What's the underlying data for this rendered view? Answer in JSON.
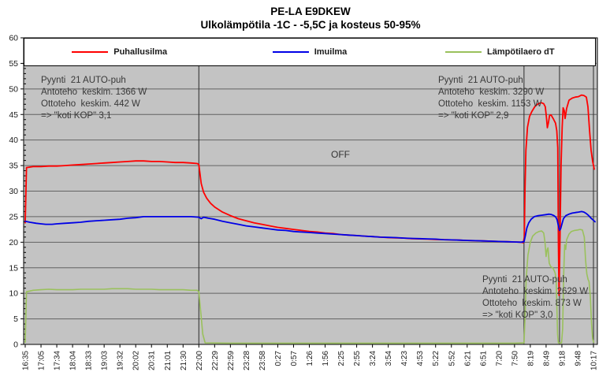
{
  "title": "PE-LA E9DKEW",
  "subtitle": "Ulkolämpötila -1C - -5,5C ja kosteus 50-95%",
  "annotations": {
    "period1": {
      "lines": [
        "Pyynti  21 AUTO-puh",
        "Antoteho  keskim. 1366 W",
        "Ottoteho  keskim. 442 W",
        "=> \"koti KOP\" 3,1"
      ]
    },
    "period2": {
      "lines": [
        "Pyynti  21 AUTO-puh",
        "Antoteho  keskim. 3290 W",
        "Ottoteho  keskim. 1153 W",
        "=> \"koti KOP\" 2,9"
      ]
    },
    "period3": {
      "lines": [
        "Pyynti  21 AUTO-puh",
        "Antoteho  keskim. 2629 W",
        "Ottoteho  keskim. 873 W",
        "=> \"koti KOP\" 3,0"
      ]
    },
    "off_label": "OFF"
  },
  "chart_data": {
    "type": "line",
    "title": "PE-LA E9DKEW",
    "subtitle": "Ulkolämpötila -1C - -5,5C ja kosteus 50-95%",
    "xlabel": "",
    "ylabel": "",
    "ylim": [
      0,
      60
    ],
    "ytick_step": 5,
    "yminor_step": 1,
    "xtick_rotation": -90,
    "grid": "horizontal major gridlines on gray plot background",
    "legend_position": "top",
    "plot_bg": "#c3c3c3",
    "gridline_color": "#636363",
    "divider_color": "#2b2b2b",
    "axis_color": "#000000",
    "divider_indices": [
      11,
      31.6,
      33.85,
      36.0
    ],
    "categories": [
      "16:35",
      "17:05",
      "17:34",
      "18:04",
      "18:33",
      "19:03",
      "19:32",
      "20:02",
      "20:31",
      "21:01",
      "21:30",
      "22:00",
      "22:29",
      "22:59",
      "23:28",
      "23:58",
      "0:27",
      "0:57",
      "1:26",
      "1:56",
      "2:25",
      "2:55",
      "3:24",
      "3:54",
      "4:23",
      "4:53",
      "5:22",
      "5:52",
      "6:21",
      "6:51",
      "7:20",
      "7:50",
      "8:19",
      "8:49",
      "9:18",
      "9:48",
      "10:17"
    ],
    "series": [
      {
        "name": "Puhallusilma",
        "color": "#ff0000",
        "width": 1.8,
        "points": [
          [
            0,
            23.8
          ],
          [
            0.08,
            34.6
          ],
          [
            0.5,
            34.8
          ],
          [
            1,
            34.8
          ],
          [
            1.5,
            34.9
          ],
          [
            2,
            34.9
          ],
          [
            2.5,
            35.0
          ],
          [
            3,
            35.1
          ],
          [
            3.5,
            35.2
          ],
          [
            4,
            35.3
          ],
          [
            4.5,
            35.4
          ],
          [
            5,
            35.5
          ],
          [
            5.5,
            35.6
          ],
          [
            6,
            35.7
          ],
          [
            6.5,
            35.8
          ],
          [
            7,
            35.9
          ],
          [
            7.5,
            35.9
          ],
          [
            8,
            35.8
          ],
          [
            8.5,
            35.8
          ],
          [
            9,
            35.7
          ],
          [
            9.5,
            35.6
          ],
          [
            10,
            35.6
          ],
          [
            10.5,
            35.5
          ],
          [
            10.9,
            35.4
          ],
          [
            11,
            35.2
          ],
          [
            11.15,
            31.5
          ],
          [
            11.3,
            29.8
          ],
          [
            11.5,
            28.6
          ],
          [
            11.75,
            27.6
          ],
          [
            12,
            26.9
          ],
          [
            12.5,
            25.9
          ],
          [
            13,
            25.2
          ],
          [
            13.5,
            24.6
          ],
          [
            14,
            24.2
          ],
          [
            14.5,
            23.8
          ],
          [
            15,
            23.5
          ],
          [
            15.5,
            23.2
          ],
          [
            16,
            22.9
          ],
          [
            16.5,
            22.7
          ],
          [
            17,
            22.5
          ],
          [
            17.5,
            22.3
          ],
          [
            18,
            22.1
          ],
          [
            18.5,
            22.0
          ],
          [
            19,
            21.8
          ],
          [
            19.5,
            21.7
          ],
          [
            20,
            21.5
          ],
          [
            20.5,
            21.4
          ],
          [
            21,
            21.3
          ],
          [
            21.5,
            21.2
          ],
          [
            22,
            21.1
          ],
          [
            22.5,
            21.0
          ],
          [
            23,
            20.9
          ],
          [
            23.5,
            20.85
          ],
          [
            24,
            20.8
          ],
          [
            24.5,
            20.7
          ],
          [
            25,
            20.65
          ],
          [
            25.5,
            20.6
          ],
          [
            26,
            20.55
          ],
          [
            26.5,
            20.5
          ],
          [
            27,
            20.45
          ],
          [
            27.5,
            20.4
          ],
          [
            28,
            20.35
          ],
          [
            28.5,
            20.3
          ],
          [
            29,
            20.25
          ],
          [
            29.5,
            20.2
          ],
          [
            30,
            20.15
          ],
          [
            30.5,
            20.1
          ],
          [
            31,
            20.05
          ],
          [
            31.4,
            20.0
          ],
          [
            31.55,
            19.9
          ],
          [
            31.62,
            21
          ],
          [
            31.66,
            30
          ],
          [
            31.72,
            38
          ],
          [
            31.82,
            42.5
          ],
          [
            31.95,
            44.6
          ],
          [
            32.1,
            45.6
          ],
          [
            32.3,
            46.6
          ],
          [
            32.5,
            47.1
          ],
          [
            32.7,
            47.3
          ],
          [
            32.85,
            47.1
          ],
          [
            32.95,
            46.5
          ],
          [
            33.02,
            44.5
          ],
          [
            33.08,
            42.4
          ],
          [
            33.15,
            43.4
          ],
          [
            33.22,
            44.8
          ],
          [
            33.32,
            44.9
          ],
          [
            33.45,
            44.2
          ],
          [
            33.6,
            43.3
          ],
          [
            33.68,
            41.8
          ],
          [
            33.74,
            38.5
          ],
          [
            33.78,
            20
          ],
          [
            33.82,
            9.6
          ],
          [
            33.88,
            20
          ],
          [
            33.95,
            35
          ],
          [
            34.02,
            42.5
          ],
          [
            34.08,
            46.3
          ],
          [
            34.15,
            45.8
          ],
          [
            34.2,
            44.2
          ],
          [
            34.3,
            46.2
          ],
          [
            34.45,
            47.8
          ],
          [
            34.65,
            48.2
          ],
          [
            34.85,
            48.4
          ],
          [
            35.05,
            48.5
          ],
          [
            35.25,
            48.8
          ],
          [
            35.4,
            48.7
          ],
          [
            35.55,
            48.4
          ],
          [
            35.65,
            46.5
          ],
          [
            35.75,
            42
          ],
          [
            35.85,
            38
          ],
          [
            35.95,
            35.8
          ],
          [
            36.05,
            34.3
          ]
        ]
      },
      {
        "name": "Imuilma",
        "color": "#0000e6",
        "width": 1.8,
        "points": [
          [
            0,
            24.1
          ],
          [
            0.3,
            23.9
          ],
          [
            0.7,
            23.7
          ],
          [
            1,
            23.6
          ],
          [
            1.3,
            23.5
          ],
          [
            1.7,
            23.5
          ],
          [
            2,
            23.6
          ],
          [
            2.5,
            23.7
          ],
          [
            3,
            23.8
          ],
          [
            3.5,
            23.9
          ],
          [
            4,
            24.1
          ],
          [
            4.5,
            24.2
          ],
          [
            5,
            24.3
          ],
          [
            5.5,
            24.4
          ],
          [
            6,
            24.5
          ],
          [
            6.5,
            24.7
          ],
          [
            7,
            24.8
          ],
          [
            7.5,
            25.0
          ],
          [
            8,
            25.0
          ],
          [
            8.5,
            25.0
          ],
          [
            9,
            25.0
          ],
          [
            9.5,
            25.0
          ],
          [
            10,
            25.0
          ],
          [
            10.5,
            25.0
          ],
          [
            11,
            24.9
          ],
          [
            11.15,
            24.6
          ],
          [
            11.3,
            24.9
          ],
          [
            11.6,
            24.7
          ],
          [
            12,
            24.5
          ],
          [
            12.5,
            24.1
          ],
          [
            13,
            23.8
          ],
          [
            13.5,
            23.5
          ],
          [
            14,
            23.2
          ],
          [
            14.5,
            23.0
          ],
          [
            15,
            22.8
          ],
          [
            15.5,
            22.6
          ],
          [
            16,
            22.4
          ],
          [
            16.5,
            22.3
          ],
          [
            17,
            22.1
          ],
          [
            17.5,
            22.0
          ],
          [
            18,
            21.9
          ],
          [
            18.5,
            21.8
          ],
          [
            19,
            21.7
          ],
          [
            19.5,
            21.6
          ],
          [
            20,
            21.5
          ],
          [
            20.5,
            21.4
          ],
          [
            21,
            21.3
          ],
          [
            21.5,
            21.2
          ],
          [
            22,
            21.1
          ],
          [
            22.5,
            21.0
          ],
          [
            23,
            20.95
          ],
          [
            23.5,
            20.9
          ],
          [
            24,
            20.8
          ],
          [
            24.5,
            20.75
          ],
          [
            25,
            20.7
          ],
          [
            25.5,
            20.65
          ],
          [
            26,
            20.6
          ],
          [
            26.5,
            20.5
          ],
          [
            27,
            20.45
          ],
          [
            27.5,
            20.4
          ],
          [
            28,
            20.35
          ],
          [
            28.5,
            20.3
          ],
          [
            29,
            20.25
          ],
          [
            29.5,
            20.2
          ],
          [
            30,
            20.15
          ],
          [
            30.5,
            20.1
          ],
          [
            31,
            20.05
          ],
          [
            31.4,
            20.0
          ],
          [
            31.6,
            20.1
          ],
          [
            31.68,
            21.2
          ],
          [
            31.78,
            22.8
          ],
          [
            31.9,
            23.8
          ],
          [
            32.05,
            24.5
          ],
          [
            32.25,
            25.0
          ],
          [
            32.5,
            25.2
          ],
          [
            32.75,
            25.3
          ],
          [
            33,
            25.4
          ],
          [
            33.2,
            25.5
          ],
          [
            33.35,
            25.4
          ],
          [
            33.5,
            25.2
          ],
          [
            33.62,
            24.9
          ],
          [
            33.7,
            24.4
          ],
          [
            33.78,
            23.2
          ],
          [
            33.85,
            22.3
          ],
          [
            33.92,
            22.6
          ],
          [
            34,
            23.5
          ],
          [
            34.1,
            24.6
          ],
          [
            34.25,
            25.2
          ],
          [
            34.45,
            25.5
          ],
          [
            34.65,
            25.7
          ],
          [
            34.85,
            25.8
          ],
          [
            35.05,
            25.9
          ],
          [
            35.25,
            26.0
          ],
          [
            35.4,
            25.9
          ],
          [
            35.55,
            25.6
          ],
          [
            35.7,
            25.2
          ],
          [
            35.85,
            24.7
          ],
          [
            36.0,
            24.3
          ],
          [
            36.1,
            24.0
          ]
        ]
      },
      {
        "name": "Lämpötilaero dT",
        "color": "#9ac15c",
        "width": 1.6,
        "points": [
          [
            0,
            0.4
          ],
          [
            0.08,
            10.3
          ],
          [
            0.5,
            10.6
          ],
          [
            1,
            10.7
          ],
          [
            1.5,
            10.8
          ],
          [
            2,
            10.7
          ],
          [
            2.5,
            10.7
          ],
          [
            3,
            10.7
          ],
          [
            3.5,
            10.8
          ],
          [
            4,
            10.8
          ],
          [
            4.5,
            10.8
          ],
          [
            5,
            10.8
          ],
          [
            5.5,
            10.9
          ],
          [
            6,
            10.9
          ],
          [
            6.5,
            10.9
          ],
          [
            7,
            10.8
          ],
          [
            7.5,
            10.8
          ],
          [
            8,
            10.8
          ],
          [
            8.5,
            10.7
          ],
          [
            9,
            10.7
          ],
          [
            9.5,
            10.7
          ],
          [
            10,
            10.7
          ],
          [
            10.5,
            10.6
          ],
          [
            10.9,
            10.6
          ],
          [
            11,
            10.3
          ],
          [
            11.1,
            7
          ],
          [
            11.25,
            2
          ],
          [
            11.4,
            0.3
          ],
          [
            13,
            0.25
          ],
          [
            15,
            0.25
          ],
          [
            17,
            0.25
          ],
          [
            19,
            0.25
          ],
          [
            21,
            0.25
          ],
          [
            23,
            0.25
          ],
          [
            25,
            0.25
          ],
          [
            27,
            0.25
          ],
          [
            29,
            0.25
          ],
          [
            31,
            0.25
          ],
          [
            31.6,
            0.3
          ],
          [
            31.66,
            5
          ],
          [
            31.74,
            13
          ],
          [
            31.85,
            17.5
          ],
          [
            32,
            20
          ],
          [
            32.15,
            21.2
          ],
          [
            32.35,
            21.8
          ],
          [
            32.55,
            22.1
          ],
          [
            32.72,
            22.2
          ],
          [
            32.85,
            21.8
          ],
          [
            32.93,
            20
          ],
          [
            33.0,
            17.2
          ],
          [
            33.07,
            18.6
          ],
          [
            33.12,
            18.9
          ],
          [
            33.2,
            15.9
          ],
          [
            33.3,
            15.2
          ],
          [
            33.42,
            15.0
          ],
          [
            33.52,
            14.4
          ],
          [
            33.58,
            13.9
          ],
          [
            33.64,
            12.5
          ],
          [
            33.68,
            8
          ],
          [
            33.73,
            2
          ],
          [
            33.78,
            0.3
          ],
          [
            33.98,
            0.3
          ],
          [
            34.05,
            3
          ],
          [
            34.12,
            14
          ],
          [
            34.18,
            19.5
          ],
          [
            34.24,
            18.6
          ],
          [
            34.3,
            20.5
          ],
          [
            34.45,
            21.6
          ],
          [
            34.6,
            22.1
          ],
          [
            34.8,
            22.3
          ],
          [
            35,
            22.4
          ],
          [
            35.15,
            22.5
          ],
          [
            35.3,
            22.4
          ],
          [
            35.42,
            21
          ],
          [
            35.5,
            16.5
          ],
          [
            35.58,
            13.8
          ],
          [
            35.66,
            12.7
          ],
          [
            35.72,
            12.3
          ],
          [
            35.8,
            9.5
          ],
          [
            35.88,
            4
          ],
          [
            35.95,
            1
          ],
          [
            36.02,
            0.4
          ]
        ]
      }
    ]
  }
}
